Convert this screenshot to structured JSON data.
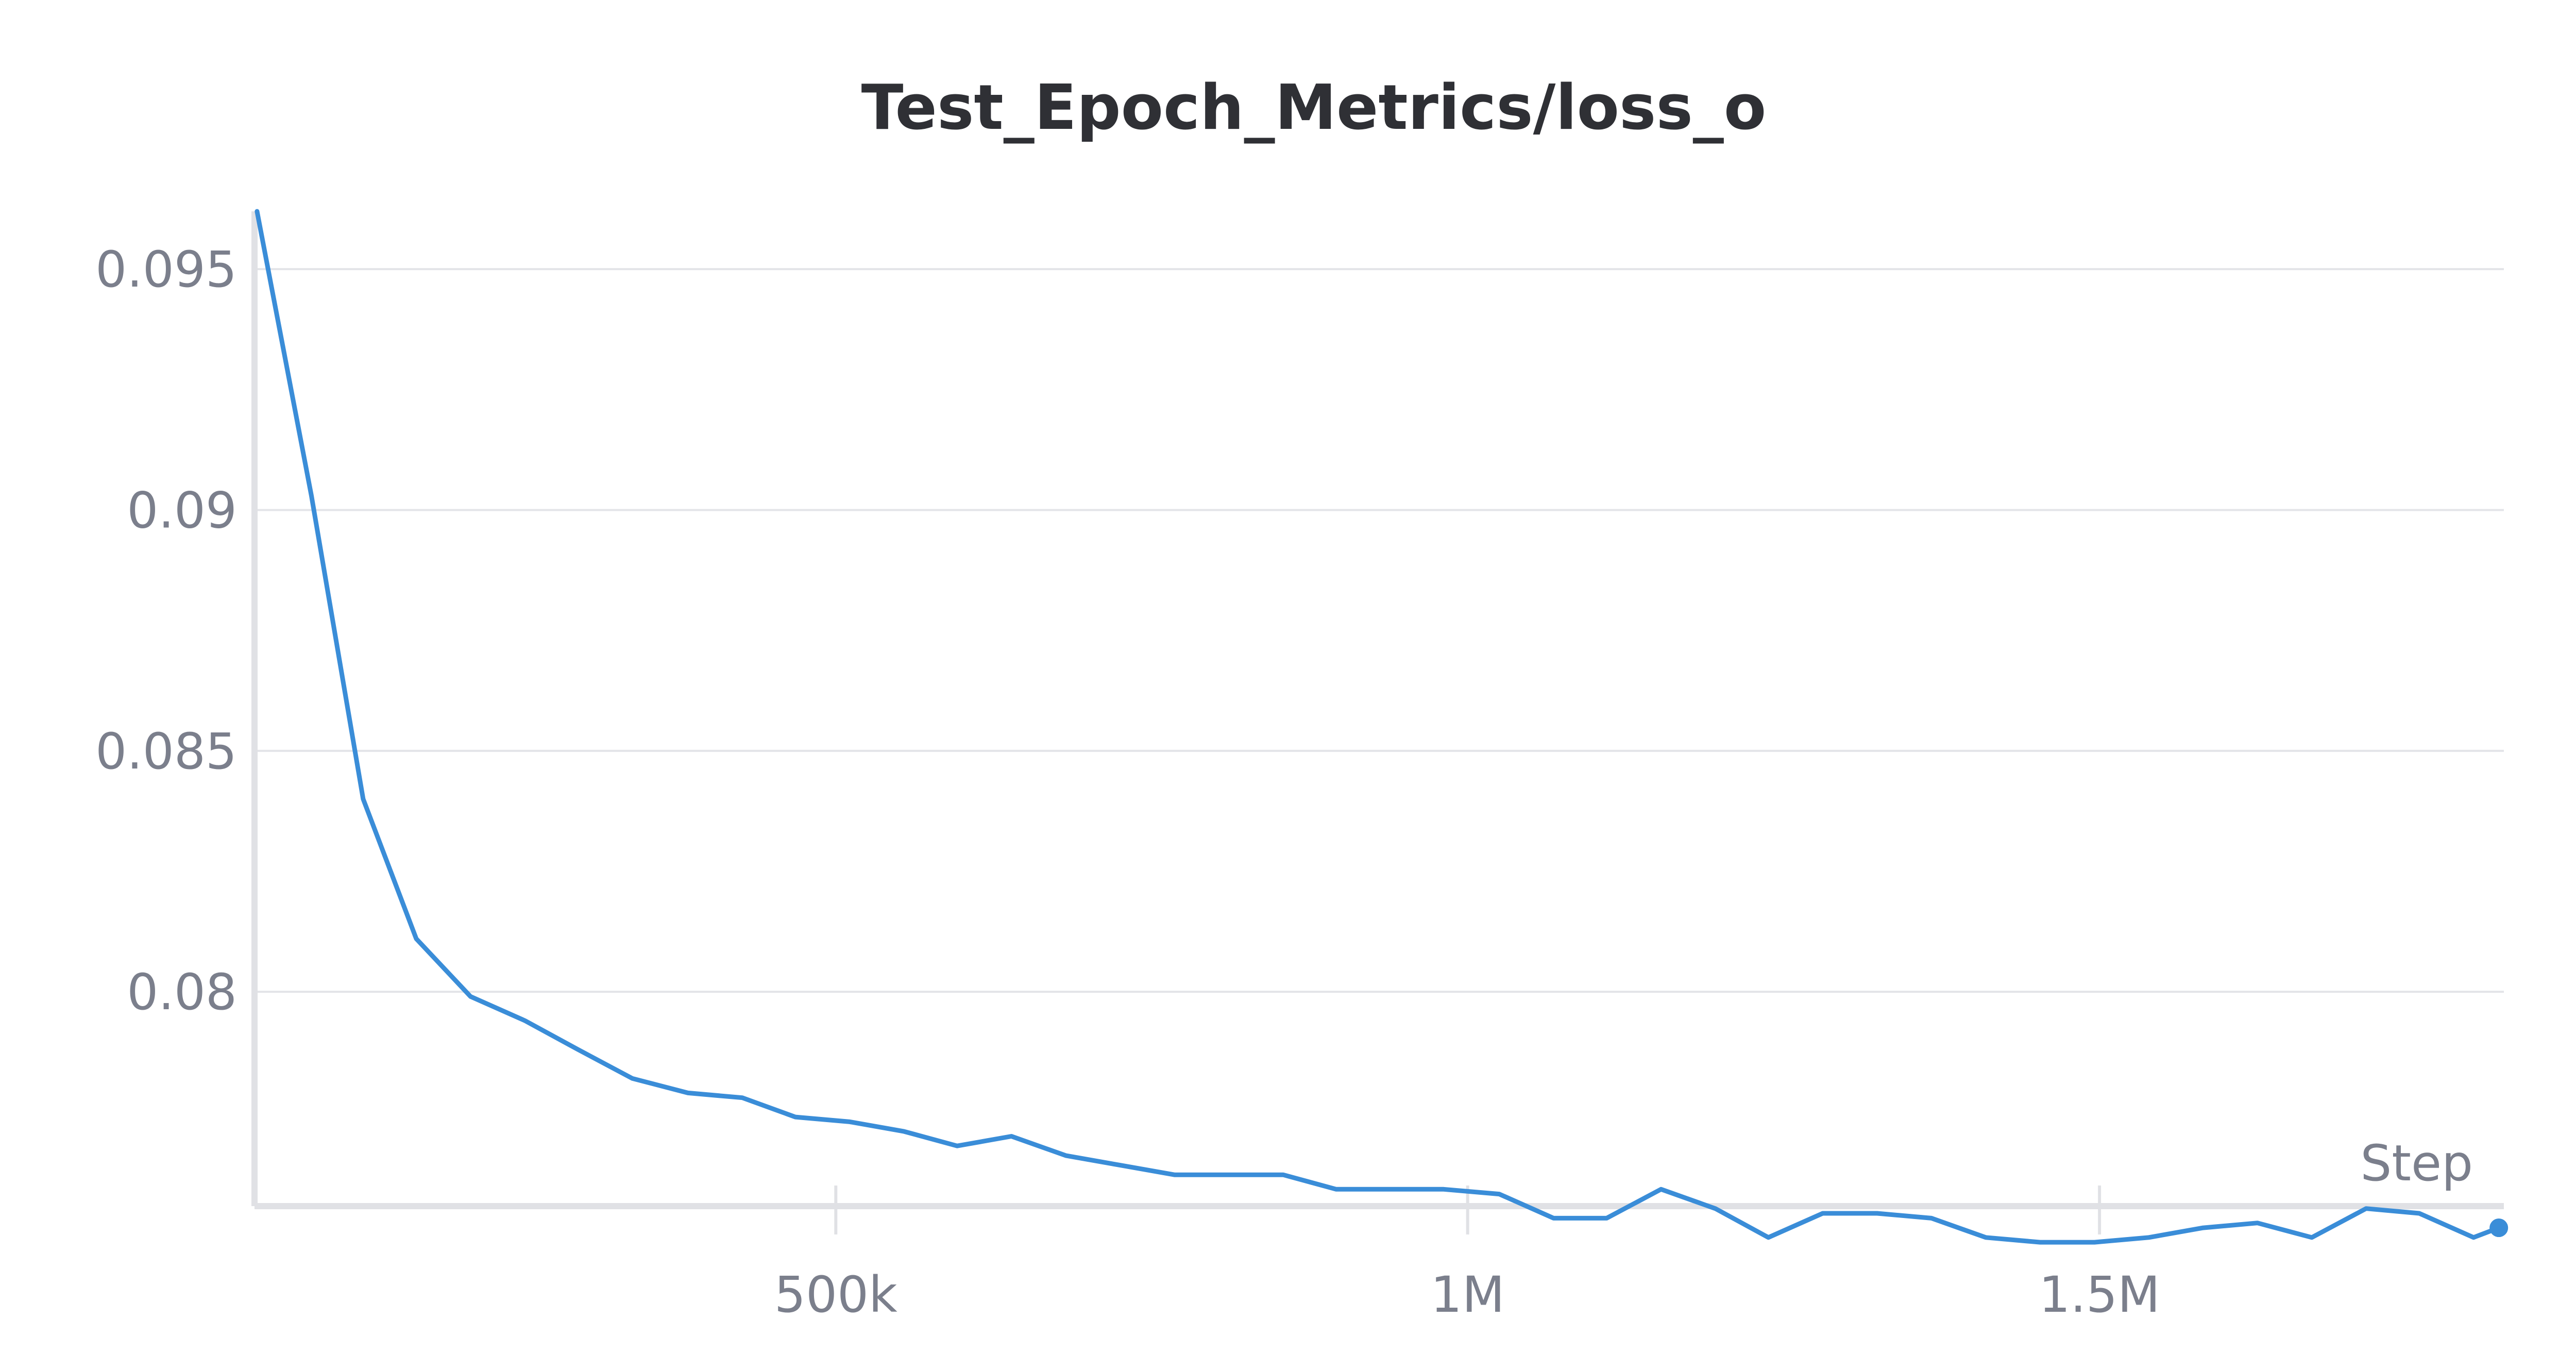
{
  "chart_data": {
    "type": "line",
    "title": "Test_Epoch_Metrics/loss_o",
    "xlabel": "Step",
    "ylabel": "",
    "xlim": [
      40000,
      1820000
    ],
    "ylim": [
      0.07555,
      0.0962
    ],
    "grid": true,
    "x_ticks": [
      {
        "value": 500000,
        "label": "500k"
      },
      {
        "value": 1000000,
        "label": "1M"
      },
      {
        "value": 1500000,
        "label": "1.5M"
      }
    ],
    "y_ticks": [
      {
        "value": 0.095,
        "label": "0.095"
      },
      {
        "value": 0.09,
        "label": "0.09"
      },
      {
        "value": 0.085,
        "label": "0.085"
      },
      {
        "value": 0.08,
        "label": "0.08"
      }
    ],
    "series": [
      {
        "color": "#3a8dd8",
        "x": [
          42000,
          85000,
          126000,
          168000,
          211000,
          254000,
          296000,
          339000,
          383000,
          426000,
          468000,
          511000,
          554000,
          596000,
          639000,
          682000,
          725000,
          768000,
          811000,
          854000,
          896000,
          939000,
          981000,
          1025000,
          1068000,
          1110000,
          1153000,
          1196000,
          1238000,
          1281000,
          1324000,
          1367000,
          1410000,
          1453000,
          1496000,
          1539000,
          1582000,
          1625000,
          1668000,
          1711000,
          1753000,
          1796000,
          1816000
        ],
        "y": [
          0.0962,
          0.0903,
          0.084,
          0.0811,
          0.0799,
          0.0794,
          0.0788,
          0.0782,
          0.0779,
          0.0778,
          0.0774,
          0.0773,
          0.0771,
          0.0768,
          0.077,
          0.0766,
          0.0764,
          0.0762,
          0.0762,
          0.0762,
          0.0759,
          0.0759,
          0.0759,
          0.0758,
          0.0753,
          0.0753,
          0.0759,
          0.0755,
          0.0749,
          0.0754,
          0.0754,
          0.0753,
          0.0749,
          0.0748,
          0.0748,
          0.0749,
          0.0751,
          0.0752,
          0.0749,
          0.0755,
          0.0754,
          0.0749,
          0.0751
        ]
      }
    ]
  }
}
